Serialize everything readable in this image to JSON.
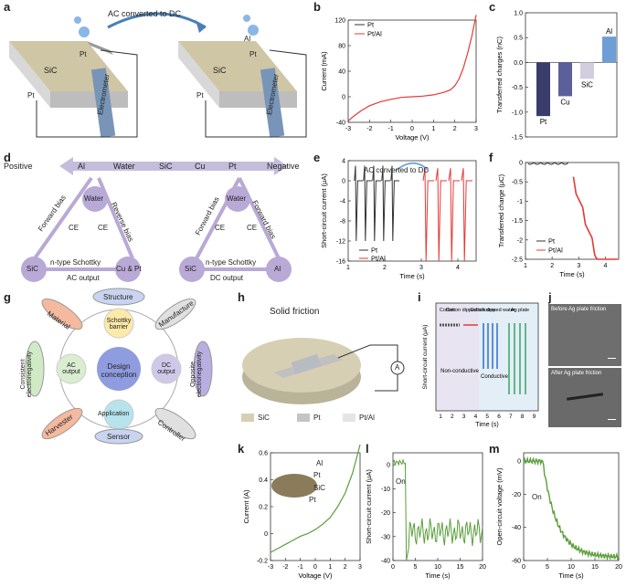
{
  "labels": {
    "a": "a",
    "b": "b",
    "c": "c",
    "d": "d",
    "e": "e",
    "f": "f",
    "g": "g",
    "h": "h",
    "i": "i",
    "j": "j",
    "k": "k",
    "l": "l",
    "m": "m"
  },
  "panel_a": {
    "title": "AC converted to DC",
    "sic": "SiC",
    "pt": "Pt",
    "al": "Al",
    "electrometer": "Electrometer",
    "electrode_top": "Pt"
  },
  "panel_d": {
    "positive": "Positive",
    "negative": "Negative",
    "series": [
      "Al",
      "Water",
      "SiC",
      "Cu",
      "Pt"
    ],
    "left": {
      "top": "Water",
      "bl": "SiC",
      "br": "Cu & Pt",
      "fwd": "Forward bias",
      "rev": "Reverse bias",
      "ce1": "CE",
      "ce2": "CE",
      "schottky": "n-type Schottky",
      "out": "AC output"
    },
    "right": {
      "top": "Water",
      "bl": "SiC",
      "br": "Al",
      "fwd": "Forward bias",
      "rev": "Forward bias",
      "ce1": "CE",
      "ce2": "CE",
      "schottky": "n-type Schottky",
      "out": "DC output"
    }
  },
  "panel_g": {
    "center": "Design conception",
    "schottky": "Schottky barrier",
    "ac": "AC output",
    "dc": "DC output",
    "application": "Application",
    "structure": "Structure",
    "material": "Material",
    "manufacture": "Manufacture",
    "consistent": "Consistent electronegativity",
    "opposite": "Opposite electronegativity",
    "harvester": "Harvester",
    "sensor": "Sensor",
    "controller": "Controller"
  },
  "panel_h": {
    "title": "Solid friction",
    "meter": "A",
    "legend": [
      "SiC",
      "Pt",
      "Pt/Al"
    ]
  },
  "panel_i": {
    "ylabel": "Short-circuit current (μA)",
    "xlabel": "Time (s)",
    "xticks": [
      "1",
      "2",
      "3",
      "4",
      "5",
      "6",
      "7",
      "8",
      "9"
    ],
    "groups": [
      "Cotton",
      "Cotton dipped silicone",
      "Cotton dipped water",
      "Ag plate"
    ],
    "nonconductive": "Non-conductive",
    "conductive": "Conductive"
  },
  "panel_j": {
    "before": "Before Ag plate friction",
    "after": "After Ag plate friction"
  },
  "panel_k": {
    "al": "Al",
    "pt1": "Pt",
    "sic": "SiC",
    "pt2": "Pt"
  },
  "panel_l_on": "On",
  "panel_m_on": "On",
  "colors": {
    "pt_black": "#333333",
    "ptal_red": "#e53935",
    "green": "#5a9e3a",
    "purple_node": "#b9a9d6"
  },
  "chart_data": [
    {
      "id": "b",
      "type": "line",
      "xlabel": "Voltage (V)",
      "ylabel": "Current (mA)",
      "xlim": [
        -3,
        3
      ],
      "ylim": [
        -40,
        120
      ],
      "xticks": [
        -3,
        -2,
        -1,
        0,
        1,
        2,
        3
      ],
      "yticks": [
        -40,
        0,
        40,
        80,
        120
      ],
      "legend": [
        "Pt",
        "Pt/Al"
      ],
      "series": [
        {
          "name": "Pt",
          "values": []
        },
        {
          "name": "Pt/Al",
          "x": [
            -3,
            -2.8,
            -2.6,
            -2.4,
            -2.2,
            -2,
            -1.5,
            -1,
            -0.5,
            0,
            0.5,
            1,
            1.5,
            1.8,
            2,
            2.2,
            2.4,
            2.6,
            2.8,
            3
          ],
          "y": [
            -38,
            -32,
            -27,
            -22,
            -18,
            -14,
            -8,
            -4,
            -1,
            0,
            1,
            3,
            7,
            11,
            17,
            28,
            45,
            68,
            95,
            128
          ]
        }
      ]
    },
    {
      "id": "c",
      "type": "bar",
      "ylabel": "Transferred charges (nC)",
      "ylim": [
        -1.5,
        1.0
      ],
      "yticks": [
        -1.5,
        -1.0,
        -0.5,
        0.0,
        0.5,
        1.0
      ],
      "categories": [
        "Pt",
        "Cu",
        "SiC",
        "Al"
      ],
      "values": [
        -1.08,
        -0.68,
        -0.33,
        0.52
      ],
      "colors": [
        "#3a3d6b",
        "#5b5f9a",
        "#d3cde0",
        "#6e9ed6"
      ]
    },
    {
      "id": "e",
      "type": "line",
      "xlabel": "Time (s)",
      "ylabel": "Short-circuit current (μA)",
      "title": "AC converted to DC",
      "xlim": [
        1,
        4.5
      ],
      "ylim": [
        -16,
        4
      ],
      "xticks": [
        1,
        2,
        3,
        4
      ],
      "yticks": [
        -16,
        -12,
        -8,
        -4,
        0,
        4
      ],
      "legend": [
        "Pt",
        "Pt/Al"
      ]
    },
    {
      "id": "f",
      "type": "line",
      "xlabel": "Time (s)",
      "ylabel": "Transferred charge (μC)",
      "xlim": [
        1,
        4.5
      ],
      "ylim": [
        -2.5,
        0
      ],
      "xticks": [
        1,
        2,
        3,
        4
      ],
      "yticks": [
        0.0,
        -0.5,
        -1.0,
        -1.5,
        -2.0,
        -2.5
      ],
      "legend": [
        "Pt",
        "Pt/Al"
      ]
    },
    {
      "id": "k",
      "type": "line",
      "xlabel": "Voltage (V)",
      "ylabel": "Current (A)",
      "xlim": [
        -3,
        3
      ],
      "ylim": [
        -0.2,
        0.6
      ],
      "xticks": [
        -3,
        -2,
        -1,
        0,
        1,
        2,
        3
      ],
      "yticks": [
        -0.2,
        0.0,
        0.2,
        0.4,
        0.6
      ],
      "series": [
        {
          "x": [
            -3,
            -2.5,
            -2,
            -1.5,
            -1,
            -0.5,
            0,
            0.5,
            1,
            1.5,
            2,
            2.5,
            3
          ],
          "y": [
            -0.14,
            -0.11,
            -0.08,
            -0.05,
            -0.02,
            0.0,
            0.03,
            0.07,
            0.12,
            0.2,
            0.3,
            0.45,
            0.66
          ]
        }
      ]
    },
    {
      "id": "l",
      "type": "line",
      "xlabel": "Time (s)",
      "ylabel": "Short-circuit current (μA)",
      "xlim": [
        0,
        20
      ],
      "ylim": [
        -40,
        5
      ],
      "xticks": [
        0,
        5,
        10,
        15,
        20
      ],
      "yticks": [
        0,
        -10,
        -20,
        -30,
        -40
      ]
    },
    {
      "id": "m",
      "type": "line",
      "xlabel": "Time (s)",
      "ylabel": "Open-circuit voltage (mV)",
      "xlim": [
        0,
        20
      ],
      "ylim": [
        -60,
        5
      ],
      "xticks": [
        0,
        5,
        10,
        15,
        20
      ],
      "yticks": [
        0,
        -20,
        -40,
        -60
      ]
    }
  ]
}
